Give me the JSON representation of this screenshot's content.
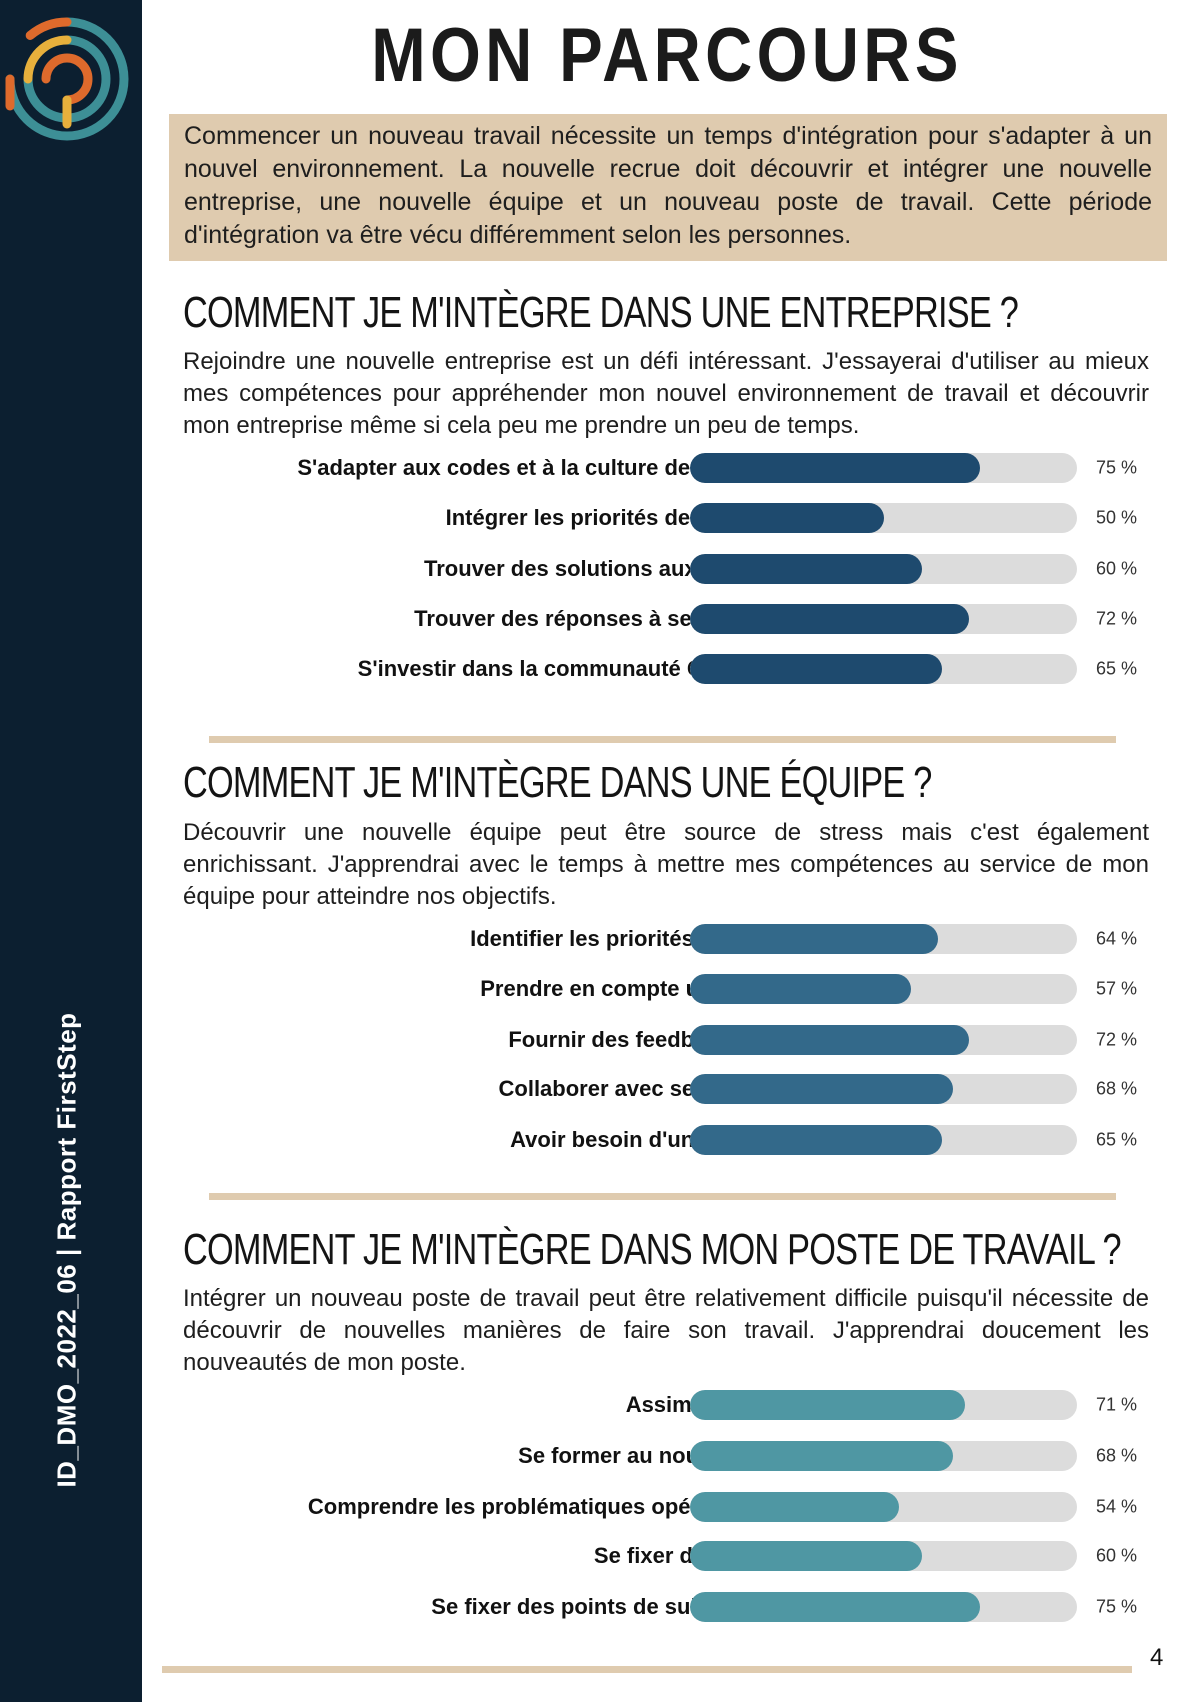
{
  "sidebar": {
    "vertical_text": "ID_DMO_2022_06 | Rapport  FirstStep"
  },
  "title": "MON PARCOURS ONBOARDING",
  "intro": "Commencer un nouveau travail nécessite un temps d'intégration pour s'adapter à un nouvel environnement. La nouvelle recrue doit découvrir et intégrer une nouvelle entreprise, une nouvelle équipe et un nouveau poste de travail. Cette période d'intégration va être vécu différemment selon les personnes.",
  "colors": {
    "sidebar": "#0c1f30",
    "accent_beige": "#dfcbaf",
    "track": "#dcdcdc",
    "logo_teal": "#3d8f96",
    "logo_yellow": "#e7b03c",
    "logo_orange": "#de6a2c"
  },
  "sections": [
    {
      "title": "COMMENT JE M'INTÈGRE DANS UNE ENTREPRISE ?",
      "body": "Rejoindre une nouvelle entreprise est un défi intéressant. J'essayerai d'utiliser au mieux mes compétences pour appréhender mon nouvel environnement de travail et découvrir mon entreprise même si cela peu me prendre un peu de temps.",
      "color": "#1e4a6e",
      "items": [
        {
          "label": "S'adapter aux codes et à la culture de l'entreprise",
          "value": 75,
          "value_label": "75 %"
        },
        {
          "label": "Intégrer les priorités de l'entreprise",
          "value": 50,
          "value_label": "50 %"
        },
        {
          "label": "Trouver des solutions aux problèmes",
          "value": 60,
          "value_label": "60 %"
        },
        {
          "label": "Trouver des réponses à ses questions",
          "value": 72,
          "value_label": "72 %"
        },
        {
          "label": "S'investir dans la communauté OnBoarding",
          "value": 65,
          "value_label": "65 %"
        }
      ]
    },
    {
      "title": "COMMENT JE M'INTÈGRE DANS UNE ÉQUIPE ?",
      "body": "Découvrir une nouvelle équipe peut être source de stress mais c'est également enrichissant. J'apprendrai avec le temps à mettre mes compétences au service de mon équipe pour atteindre nos objectifs.",
      "color": "#33698a",
      "items": [
        {
          "label": "Identifier les priorités de l'équipe",
          "value": 64,
          "value_label": "64 %"
        },
        {
          "label": "Prendre en compte un feedback",
          "value": 57,
          "value_label": "57 %"
        },
        {
          "label": "Fournir des feedbacks précis",
          "value": 72,
          "value_label": "72 %"
        },
        {
          "label": "Collaborer avec ses collègues",
          "value": 68,
          "value_label": "68 %"
        },
        {
          "label": "Avoir besoin d'un·e mentor·e",
          "value": 65,
          "value_label": "65 %"
        }
      ]
    },
    {
      "title": "COMMENT JE M'INTÈGRE DANS MON POSTE DE TRAVAIL  ?",
      "body": "Intégrer un nouveau poste de travail peut être relativement difficile puisqu'il nécessite de découvrir de nouvelles manières de faire son travail. J'apprendrai doucement les nouveautés de mon poste.",
      "color": "#4f97a3",
      "items": [
        {
          "label": "Assimiler le poste",
          "value": 71,
          "value_label": "71 %"
        },
        {
          "label": "Se former au nouveau poste",
          "value": 68,
          "value_label": "68 %"
        },
        {
          "label": "Comprendre les problématiques opérationnelles",
          "value": 54,
          "value_label": "54 %"
        },
        {
          "label": "Se fixer des objectifs",
          "value": 60,
          "value_label": "60 %"
        },
        {
          "label": "Se fixer des points de suivi réguliers",
          "value": 75,
          "value_label": "75 %"
        }
      ]
    }
  ],
  "page_number": "4"
}
